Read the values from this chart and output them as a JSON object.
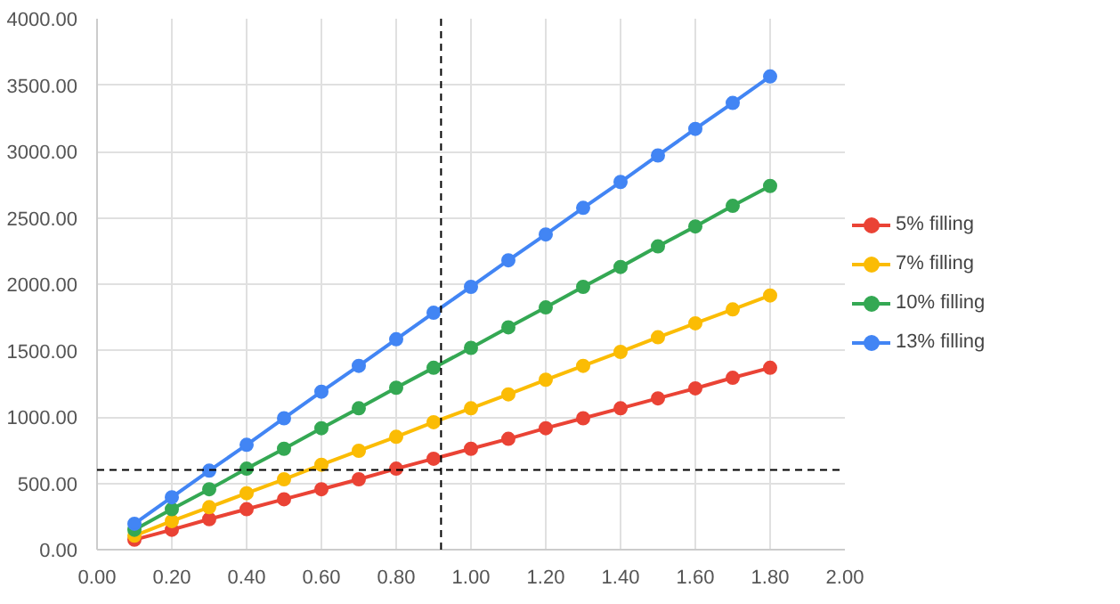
{
  "chart_data": {
    "type": "line",
    "x": [
      0.1,
      0.2,
      0.3,
      0.4,
      0.5,
      0.6,
      0.7,
      0.8,
      0.9,
      1.0,
      1.1,
      1.2,
      1.3,
      1.4,
      1.5,
      1.6,
      1.7,
      1.8
    ],
    "series": [
      {
        "name": "5% filling",
        "color": "#ea4335",
        "values": [
          75,
          150,
          230,
          305,
          380,
          455,
          530,
          610,
          685,
          760,
          835,
          915,
          990,
          1065,
          1140,
          1215,
          1295,
          1370
        ]
      },
      {
        "name": "7% filling",
        "color": "#fbbc04",
        "values": [
          105,
          215,
          320,
          425,
          530,
          640,
          745,
          850,
          960,
          1065,
          1170,
          1280,
          1385,
          1490,
          1600,
          1705,
          1810,
          1915
        ]
      },
      {
        "name": "10% filling",
        "color": "#34a853",
        "values": [
          150,
          305,
          455,
          610,
          760,
          915,
          1065,
          1220,
          1370,
          1520,
          1675,
          1825,
          1980,
          2130,
          2285,
          2435,
          2590,
          2740
        ]
      },
      {
        "name": "13% filling",
        "color": "#4285f4",
        "values": [
          195,
          395,
          595,
          790,
          990,
          1190,
          1385,
          1585,
          1785,
          1980,
          2180,
          2375,
          2575,
          2770,
          2970,
          3170,
          3365,
          3565
        ]
      }
    ],
    "xlim": [
      0,
      2
    ],
    "ylim": [
      0,
      4000
    ],
    "xticks": [
      {
        "value": 0,
        "label": "0.00"
      },
      {
        "value": 0.2,
        "label": "0.20"
      },
      {
        "value": 0.4,
        "label": "0.40"
      },
      {
        "value": 0.6,
        "label": "0.60"
      },
      {
        "value": 0.8,
        "label": "0.80"
      },
      {
        "value": 1.0,
        "label": "1.00"
      },
      {
        "value": 1.2,
        "label": "1.20"
      },
      {
        "value": 1.4,
        "label": "1.40"
      },
      {
        "value": 1.6,
        "label": "1.60"
      },
      {
        "value": 1.8,
        "label": "1.80"
      },
      {
        "value": 2.0,
        "label": "2.00"
      }
    ],
    "yticks": [
      {
        "value": 0,
        "label": "0.00"
      },
      {
        "value": 500,
        "label": "500.00"
      },
      {
        "value": 1000,
        "label": "1000.00"
      },
      {
        "value": 1500,
        "label": "1500.00"
      },
      {
        "value": 2000,
        "label": "2000.00"
      },
      {
        "value": 2500,
        "label": "2500.00"
      },
      {
        "value": 3000,
        "label": "3000.00"
      },
      {
        "value": 3500,
        "label": "3500.00"
      },
      {
        "value": 4000,
        "label": "4000.00"
      }
    ],
    "ref_lines": [
      {
        "axis": "y",
        "value": 600,
        "color": "#000000",
        "line_style": "dashed"
      },
      {
        "axis": "x",
        "value": 0.92,
        "color": "#000000",
        "line_style": "dashed"
      }
    ],
    "grid": true,
    "legend": "right",
    "marker": "circle",
    "line_style": "solid"
  }
}
